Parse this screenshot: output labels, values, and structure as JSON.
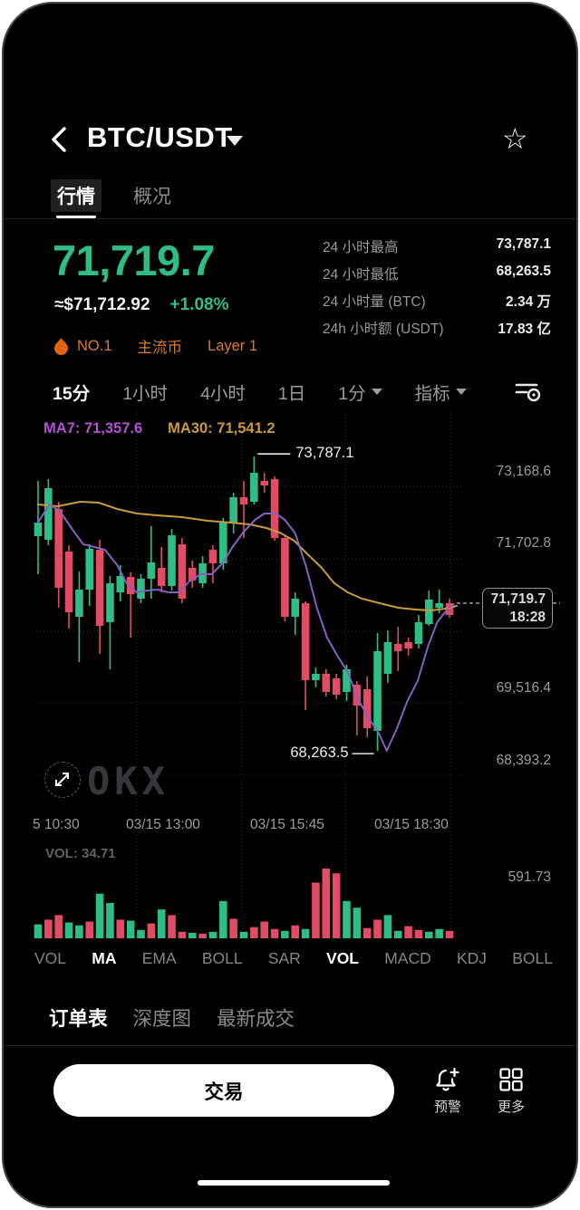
{
  "header": {
    "title": "BTC/USDT",
    "favorite_icon": "star-outline"
  },
  "tabs": {
    "market": "行情",
    "overview": "概况"
  },
  "price": {
    "last": "71,719.7",
    "fiat": "≈$71,712.92",
    "change": "+1.08%",
    "up_color": "#2ebd85",
    "down_color": "#e14b63"
  },
  "badges": {
    "rank": "NO.1",
    "tag1": "主流币",
    "tag2": "Layer 1",
    "color": "#dc7b28"
  },
  "stats": {
    "rows": [
      {
        "label": "24 小时最高",
        "value": "73,787.1"
      },
      {
        "label": "24 小时最低",
        "value": "68,263.5"
      },
      {
        "label": "24 小时量 (BTC)",
        "value": "2.34 万"
      },
      {
        "label": "24h 小时额 (USDT)",
        "value": "17.83 亿"
      }
    ]
  },
  "timeframes": {
    "items": [
      {
        "label": "15分",
        "active": true,
        "caret": false
      },
      {
        "label": "1小时",
        "active": false,
        "caret": false
      },
      {
        "label": "4小时",
        "active": false,
        "caret": false
      },
      {
        "label": "1日",
        "active": false,
        "caret": false
      },
      {
        "label": "1分",
        "active": false,
        "caret": true
      },
      {
        "label": "指标",
        "active": false,
        "caret": true
      }
    ]
  },
  "chart_data": {
    "type": "candlestick+volume",
    "symbol": "BTC/USDT",
    "interval": "15分",
    "ma7": {
      "label": "MA7:",
      "value": "71,357.6",
      "color": "#b44fd8",
      "line_color": "#8560c0"
    },
    "ma30": {
      "label": "MA30:",
      "value": "71,541.2",
      "color": "#c99b3c",
      "line_color": "#c99b3c"
    },
    "y_domain": [
      67160,
      74640
    ],
    "y_ticks": [
      {
        "label": "73,168.6",
        "y": 518
      },
      {
        "label": "71,702.8",
        "y": 597
      },
      {
        "label": "69,516.4",
        "y": 757
      },
      {
        "label": "68,393.2",
        "y": 837
      }
    ],
    "x_ticks": [
      {
        "label": "5 10:30",
        "x": 32,
        "align": "left"
      },
      {
        "label": "03/15 13:00",
        "x": 176,
        "align": "center"
      },
      {
        "label": "03/15 15:45",
        "x": 313,
        "align": "center"
      },
      {
        "label": "03/15 18:30",
        "x": 450,
        "align": "center"
      }
    ],
    "gridlines": {
      "horizontal_y": [
        533,
        613,
        693,
        772,
        852
      ],
      "vertical_x": [
        147,
        263,
        377,
        493
      ]
    },
    "annotations": {
      "high": {
        "label": "73,787.1",
        "candle_index": 21
      },
      "low": {
        "label": "68,263.5",
        "candle_index": 33
      }
    },
    "price_marker": {
      "price": "71,719.7",
      "time": "18:28",
      "y": 662
    },
    "candles": [
      [
        72294,
        73331,
        71580,
        72549
      ],
      [
        72226,
        73365,
        72124,
        73195
      ],
      [
        72804,
        72940,
        70951,
        71325
      ],
      [
        72005,
        72124,
        70560,
        70866
      ],
      [
        70781,
        71631,
        69931,
        71291
      ],
      [
        71291,
        72141,
        70985,
        72056
      ],
      [
        72039,
        72226,
        70084,
        70611
      ],
      [
        70679,
        71546,
        69795,
        71410
      ],
      [
        71240,
        71750,
        71070,
        71546
      ],
      [
        71529,
        71614,
        70390,
        71206
      ],
      [
        71121,
        71580,
        71036,
        71495
      ],
      [
        71495,
        72481,
        71121,
        71801
      ],
      [
        71699,
        72090,
        71240,
        71359
      ],
      [
        71359,
        72430,
        71274,
        72311
      ],
      [
        72141,
        72260,
        71036,
        71121
      ],
      [
        71699,
        71835,
        71325,
        71461
      ],
      [
        71410,
        71920,
        71325,
        71784
      ],
      [
        72039,
        72124,
        71410,
        71784
      ],
      [
        71784,
        72634,
        71665,
        72549
      ],
      [
        72549,
        73110,
        72345,
        73025
      ],
      [
        73025,
        73331,
        72260,
        72889
      ],
      [
        72940,
        73787,
        72889,
        73484
      ],
      [
        73331,
        73484,
        73110,
        73246
      ],
      [
        73365,
        73416,
        72209,
        72260
      ],
      [
        72260,
        72294,
        70696,
        70781
      ],
      [
        70781,
        71240,
        70441,
        71121
      ],
      [
        71036,
        71070,
        69030,
        69591
      ],
      [
        69591,
        69829,
        69455,
        69710
      ],
      [
        69710,
        69795,
        69285,
        69370
      ],
      [
        69625,
        69710,
        69234,
        69319
      ],
      [
        69370,
        69880,
        69200,
        69795
      ],
      [
        69506,
        69574,
        68554,
        69115
      ],
      [
        69421,
        69659,
        68520,
        68690
      ],
      [
        68639,
        70475,
        68263,
        70135
      ],
      [
        69710,
        70526,
        69540,
        70305
      ],
      [
        70271,
        70594,
        69761,
        70135
      ],
      [
        70305,
        70390,
        70050,
        70186
      ],
      [
        70271,
        70815,
        70186,
        70679
      ],
      [
        70645,
        71274,
        70611,
        71104
      ],
      [
        70951,
        71291,
        70849,
        71036
      ],
      [
        71036,
        71121,
        70764,
        70815
      ]
    ],
    "ma30_points": [
      [
        0,
        72889
      ],
      [
        1.9,
        72855
      ],
      [
        4.1,
        72940
      ],
      [
        5.9,
        72923
      ],
      [
        7.7,
        72804
      ],
      [
        9.6,
        72719
      ],
      [
        11.6,
        72685
      ],
      [
        14.0,
        72651
      ],
      [
        16.5,
        72583
      ],
      [
        18.7,
        72549
      ],
      [
        20.6,
        72515
      ],
      [
        22.2,
        72447
      ],
      [
        23.5,
        72362
      ],
      [
        24.9,
        72209
      ],
      [
        26.2,
        71954
      ],
      [
        27.5,
        71716
      ],
      [
        28.8,
        71410
      ],
      [
        30.1,
        71240
      ],
      [
        31.5,
        71121
      ],
      [
        33.2,
        71036
      ],
      [
        35.0,
        70951
      ],
      [
        36.7,
        70917
      ],
      [
        38.2,
        70900
      ],
      [
        39.6,
        70934
      ],
      [
        40.7,
        70985
      ]
    ],
    "ma7_points": [
      [
        0,
        72549
      ],
      [
        1.1,
        72889
      ],
      [
        2.1,
        72770
      ],
      [
        3.3,
        72430
      ],
      [
        4.4,
        72141
      ],
      [
        5.5,
        72090
      ],
      [
        6.5,
        72039
      ],
      [
        7.7,
        71750
      ],
      [
        8.6,
        71410
      ],
      [
        9.6,
        71240
      ],
      [
        10.6,
        71274
      ],
      [
        11.6,
        71291
      ],
      [
        12.7,
        71240
      ],
      [
        13.7,
        71240
      ],
      [
        14.7,
        71444
      ],
      [
        15.8,
        71580
      ],
      [
        16.9,
        71580
      ],
      [
        18.0,
        71801
      ],
      [
        18.9,
        72090
      ],
      [
        20.0,
        72379
      ],
      [
        21.1,
        72600
      ],
      [
        22.0,
        72719
      ],
      [
        23.1,
        72719
      ],
      [
        24.0,
        72600
      ],
      [
        25.0,
        72345
      ],
      [
        26.1,
        71699
      ],
      [
        27.1,
        70951
      ],
      [
        28.1,
        70390
      ],
      [
        29.1,
        70050
      ],
      [
        30.1,
        69744
      ],
      [
        31.2,
        69200
      ],
      [
        32.2,
        68860
      ],
      [
        33.1,
        68605
      ],
      [
        33.9,
        68265
      ],
      [
        34.9,
        68690
      ],
      [
        35.9,
        69200
      ],
      [
        36.9,
        69574
      ],
      [
        37.9,
        70220
      ],
      [
        38.8,
        70679
      ],
      [
        39.7,
        70900
      ],
      [
        40.4,
        71019
      ]
    ],
    "volume": {
      "label": "VOL:",
      "value": "34.71",
      "max_label": "591.73",
      "max_value": 600,
      "bars": [
        [
          118,
          "g"
        ],
        [
          158,
          "r"
        ],
        [
          197,
          "r"
        ],
        [
          134,
          "g"
        ],
        [
          110,
          "g"
        ],
        [
          142,
          "r"
        ],
        [
          379,
          "g"
        ],
        [
          300,
          "g"
        ],
        [
          158,
          "r"
        ],
        [
          150,
          "g"
        ],
        [
          71,
          "g"
        ],
        [
          126,
          "r"
        ],
        [
          245,
          "g"
        ],
        [
          197,
          "r"
        ],
        [
          55,
          "r"
        ],
        [
          47,
          "g"
        ],
        [
          39,
          "r"
        ],
        [
          55,
          "g"
        ],
        [
          316,
          "g"
        ],
        [
          166,
          "r"
        ],
        [
          55,
          "g"
        ],
        [
          95,
          "r"
        ],
        [
          142,
          "r"
        ],
        [
          79,
          "r"
        ],
        [
          63,
          "g"
        ],
        [
          110,
          "r"
        ],
        [
          79,
          "g"
        ],
        [
          473,
          "r"
        ],
        [
          592,
          "r"
        ],
        [
          552,
          "r"
        ],
        [
          316,
          "g"
        ],
        [
          260,
          "g"
        ],
        [
          87,
          "r"
        ],
        [
          158,
          "r"
        ],
        [
          197,
          "g"
        ],
        [
          63,
          "g"
        ],
        [
          103,
          "r"
        ],
        [
          71,
          "r"
        ],
        [
          55,
          "g"
        ],
        [
          79,
          "g"
        ],
        [
          63,
          "r"
        ]
      ]
    },
    "colors": {
      "up": "#2ebd85",
      "down": "#e14b63",
      "grid": "#2e2e33",
      "axis_text": "#9b9ba0"
    },
    "watermark": "OKX"
  },
  "indicators": {
    "items": [
      {
        "label": "VOL",
        "active": false
      },
      {
        "label": "MA",
        "active": true
      },
      {
        "label": "EMA",
        "active": false
      },
      {
        "label": "BOLL",
        "active": false
      },
      {
        "label": "SAR",
        "active": false
      },
      {
        "label": "VOL",
        "active": true
      },
      {
        "label": "MACD",
        "active": false
      },
      {
        "label": "KDJ",
        "active": false
      },
      {
        "label": "BOLL",
        "active": false
      }
    ]
  },
  "order_tabs": {
    "items": [
      {
        "label": "订单表",
        "active": true
      },
      {
        "label": "深度图",
        "active": false
      },
      {
        "label": "最新成交",
        "active": false
      }
    ]
  },
  "bottom_bar": {
    "trade": "交易",
    "alert": "预警",
    "more": "更多"
  }
}
